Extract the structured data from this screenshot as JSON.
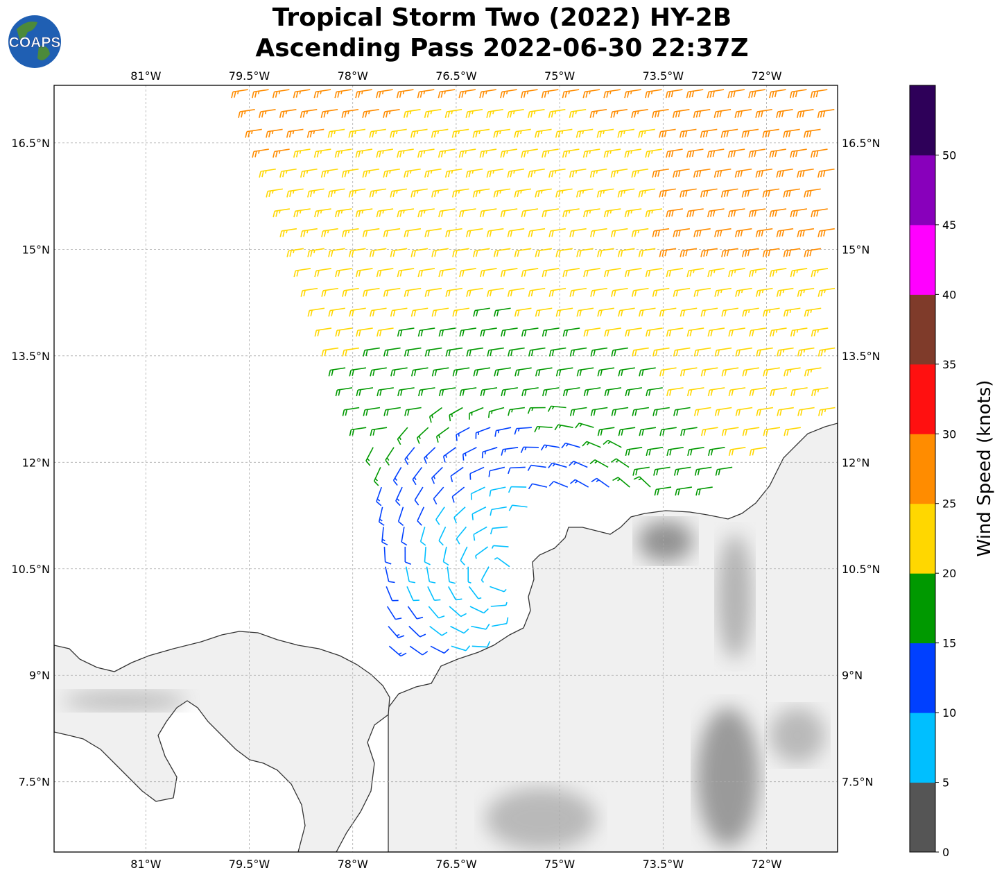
{
  "title": {
    "line1": "Tropical Storm Two (2022) HY-2B",
    "line2": "Ascending Pass 2022-06-30 22:37Z"
  },
  "logo": {
    "text": "COAPS",
    "icon": "globe-logo"
  },
  "map": {
    "lon_range": [
      -82.33,
      -70.97
    ],
    "lat_range": [
      6.51,
      17.31
    ],
    "lon_ticks": [
      {
        "value": -81,
        "label": "81°W"
      },
      {
        "value": -79.5,
        "label": "79.5°W"
      },
      {
        "value": -78,
        "label": "78°W"
      },
      {
        "value": -76.5,
        "label": "76.5°W"
      },
      {
        "value": -75,
        "label": "75°W"
      },
      {
        "value": -73.5,
        "label": "73.5°W"
      },
      {
        "value": -72,
        "label": "72°W"
      }
    ],
    "lat_ticks": [
      {
        "value": 16.5,
        "label": "16.5°N"
      },
      {
        "value": 15,
        "label": "15°N"
      },
      {
        "value": 13.5,
        "label": "13.5°N"
      },
      {
        "value": 12,
        "label": "12°N"
      },
      {
        "value": 10.5,
        "label": "10.5°N"
      },
      {
        "value": 9,
        "label": "9°N"
      },
      {
        "value": 7.5,
        "label": "7.5°N"
      }
    ],
    "gridlines": true,
    "storm_center": {
      "lon": -75.9,
      "lat": 10.4
    },
    "land_color": "#f0f0f0",
    "coast_color": "#333333"
  },
  "colorbar": {
    "label": "Wind Speed (knots)",
    "range": [
      0,
      55
    ],
    "ticks": [
      {
        "value": 0,
        "label": "0"
      },
      {
        "value": 5,
        "label": "5"
      },
      {
        "value": 10,
        "label": "10"
      },
      {
        "value": 15,
        "label": "15"
      },
      {
        "value": 20,
        "label": "20"
      },
      {
        "value": 25,
        "label": "25"
      },
      {
        "value": 30,
        "label": "30"
      },
      {
        "value": 35,
        "label": "35"
      },
      {
        "value": 40,
        "label": "40"
      },
      {
        "value": 45,
        "label": "45"
      },
      {
        "value": 50,
        "label": "50"
      }
    ],
    "bins": [
      {
        "from": 0,
        "to": 5,
        "color": "#555555"
      },
      {
        "from": 5,
        "to": 10,
        "color": "#00bfff"
      },
      {
        "from": 10,
        "to": 15,
        "color": "#0040ff"
      },
      {
        "from": 15,
        "to": 20,
        "color": "#009900"
      },
      {
        "from": 20,
        "to": 25,
        "color": "#ffd700"
      },
      {
        "from": 25,
        "to": 30,
        "color": "#ff8c00"
      },
      {
        "from": 30,
        "to": 35,
        "color": "#ff1010"
      },
      {
        "from": 35,
        "to": 40,
        "color": "#7f3b2a"
      },
      {
        "from": 40,
        "to": 45,
        "color": "#ff00ff"
      },
      {
        "from": 45,
        "to": 50,
        "color": "#8800bb"
      },
      {
        "from": 50,
        "to": 55,
        "color": "#2e0059"
      }
    ]
  }
}
